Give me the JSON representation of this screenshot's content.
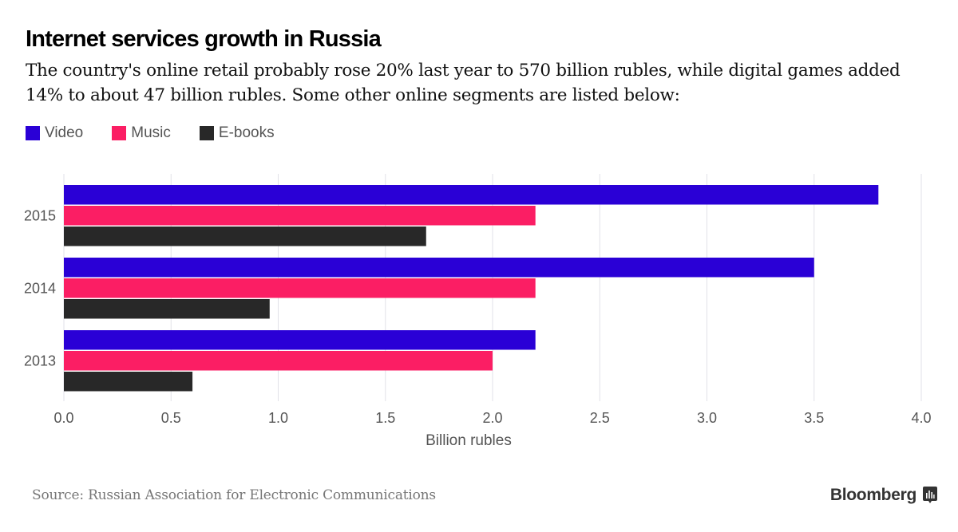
{
  "header": {
    "title": "Internet services growth in Russia",
    "subtitle": "The country's online retail probably rose 20% last year to 570 billion rubles, while digital games added 14% to about 47 billion rubles. Some other online segments are listed below:"
  },
  "footer": {
    "source": "Source: Russian Association for Electronic Communications",
    "brand": "Bloomberg",
    "brand_icon": "bloomberg-chart-icon"
  },
  "chart_data": {
    "type": "bar",
    "orientation": "horizontal",
    "title": "Internet services growth in Russia",
    "xlabel": "Billion rubles",
    "ylabel": "",
    "xlim": [
      0,
      4.0
    ],
    "xticks": [
      "0.0",
      "0.5",
      "1.0",
      "1.5",
      "2.0",
      "2.5",
      "3.0",
      "3.5",
      "4.0"
    ],
    "grid": true,
    "legend_position": "top-left",
    "categories": [
      "2015",
      "2014",
      "2013"
    ],
    "series": [
      {
        "name": "Video",
        "color": "#2a00d6",
        "values": [
          3.8,
          3.5,
          2.2
        ]
      },
      {
        "name": "Music",
        "color": "#fb1e64",
        "values": [
          2.2,
          2.2,
          2.0
        ]
      },
      {
        "name": "E-books",
        "color": "#282828",
        "values": [
          1.69,
          0.96,
          0.6
        ]
      }
    ]
  }
}
